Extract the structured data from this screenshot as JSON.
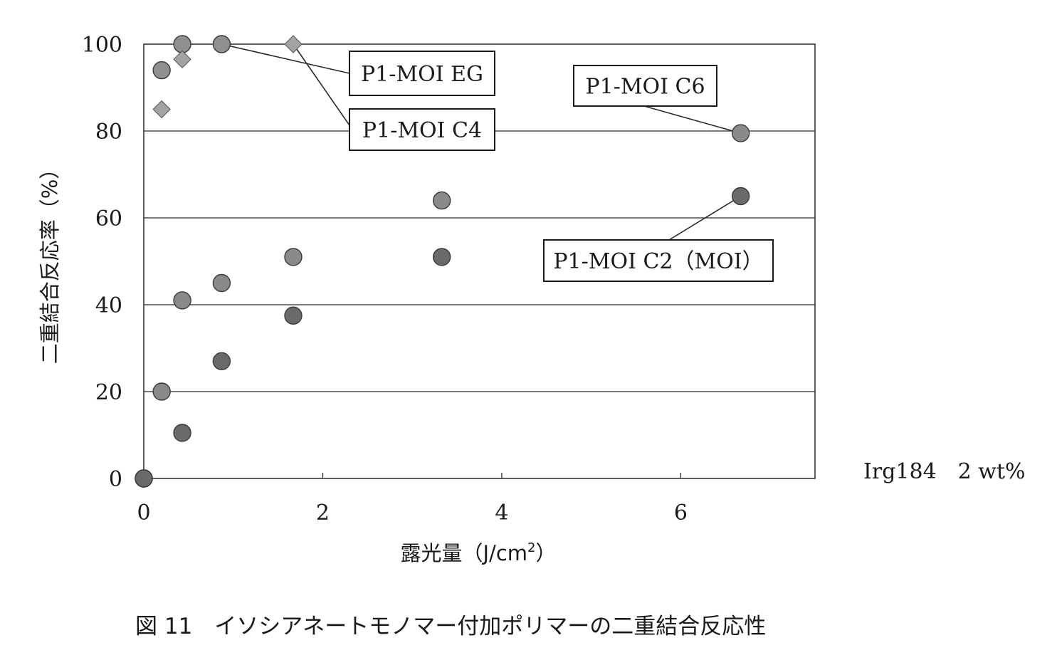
{
  "chart_data": {
    "type": "scatter",
    "title": "",
    "xlabel": "露光量（J/cm",
    "xlabel_sup": "2",
    "xlabel_close": "）",
    "ylabel": "二重結合反応率（%）",
    "xlim": [
      0,
      7.5
    ],
    "ylim": [
      0,
      100
    ],
    "x_ticks": [
      0,
      2,
      4,
      6
    ],
    "x_tick_labels": [
      "0",
      "2",
      "4",
      "6"
    ],
    "y_ticks": [
      0,
      20,
      40,
      60,
      80,
      100
    ],
    "y_tick_labels": [
      "0",
      "20",
      "40",
      "60",
      "80",
      "100"
    ],
    "grid": "horizontal",
    "series": [
      {
        "name": "P1-MOI EG",
        "marker": "circle",
        "color": "#8f8f8f",
        "x": [
          0,
          0.2,
          0.43,
          0.87
        ],
        "y": [
          0,
          94,
          100,
          100
        ]
      },
      {
        "name": "P1-MOI C4",
        "marker": "diamond",
        "color": "#a3a3a3",
        "x": [
          0,
          0.2,
          0.43,
          1.67
        ],
        "y": [
          0,
          85,
          96.5,
          100
        ]
      },
      {
        "name": "P1-MOI C6",
        "marker": "circle",
        "color": "#8a8a8a",
        "x": [
          0,
          0.2,
          0.43,
          0.87,
          1.67,
          3.33,
          6.67
        ],
        "y": [
          0,
          20,
          41,
          45,
          51,
          64,
          79.5
        ]
      },
      {
        "name": "P1-MOI C2（MOI）",
        "marker": "circle",
        "color": "#6a6a6a",
        "x": [
          0,
          0.43,
          0.87,
          1.67,
          3.33,
          6.67
        ],
        "y": [
          0,
          10.5,
          27,
          37.5,
          51,
          65
        ]
      }
    ],
    "annotations": [
      {
        "text": "P1-MOI EG",
        "series": 0,
        "point": 3
      },
      {
        "text": "P1-MOI C4",
        "series": 1,
        "point": 3
      },
      {
        "text": "P1-MOI C6",
        "series": 2,
        "point": 6
      },
      {
        "text": "P1-MOI C2（MOI）",
        "series": 3,
        "point": 5
      }
    ]
  },
  "note": "Irg184　2 wt%",
  "caption": "図 11　イソシアネートモノマー付加ポリマーの二重結合反応性"
}
